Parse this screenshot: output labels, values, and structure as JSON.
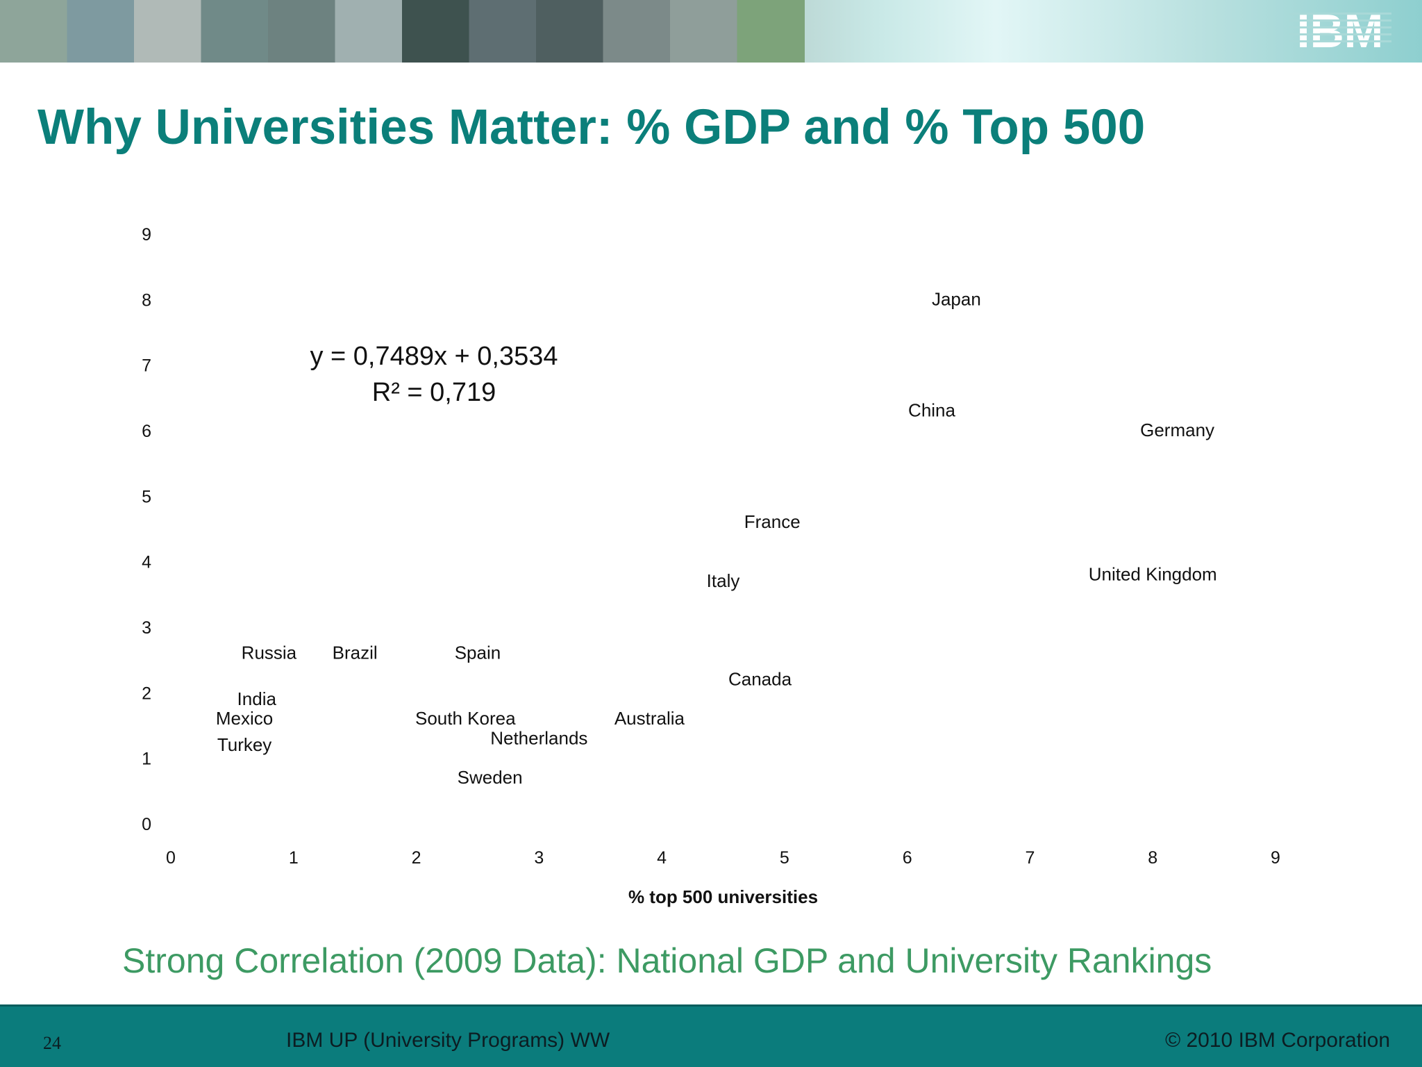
{
  "banner": {
    "logo_text": "IBM",
    "tile_colors": [
      "#8ea59a",
      "#7e9aa0",
      "#b0bab7",
      "#708a88",
      "#6d8280",
      "#a0b0b0",
      "#3e524f",
      "#5e6e72",
      "#4f5f60",
      "#7c8a89",
      "#8f9e9a",
      "#7da37a"
    ]
  },
  "slide": {
    "title": "Why Universities Matter: % GDP and % Top 500",
    "subtitle": "Strong Correlation (2009 Data): National GDP and University Rankings",
    "page_number": "24",
    "program": "IBM UP (University Programs) WW",
    "copyright": "© 2010 IBM Corporation"
  },
  "colors": {
    "title": "#0b7f7a",
    "subtitle": "#3d9a63",
    "footer": "#0b7c7c",
    "text": "#0c1d22"
  },
  "chart_data": {
    "type": "scatter",
    "xlabel": "% top 500 universities",
    "ylabel": "",
    "xlim": [
      0,
      9
    ],
    "ylim": [
      0,
      9
    ],
    "x_ticks": [
      0,
      1,
      2,
      3,
      4,
      5,
      6,
      7,
      8,
      9
    ],
    "y_ticks": [
      0,
      1,
      2,
      3,
      4,
      5,
      6,
      7,
      8,
      9
    ],
    "grid": false,
    "trendline": {
      "equation": "y = 0,7489x + 0,3534",
      "r2": "R² = 0,719"
    },
    "points": [
      {
        "label": "Japan",
        "x": 6.4,
        "y": 8.0
      },
      {
        "label": "China",
        "x": 6.2,
        "y": 6.3
      },
      {
        "label": "Germany",
        "x": 8.2,
        "y": 6.0
      },
      {
        "label": "France",
        "x": 4.9,
        "y": 4.6
      },
      {
        "label": "Italy",
        "x": 4.5,
        "y": 3.7
      },
      {
        "label": "United Kingdom",
        "x": 8.0,
        "y": 3.8
      },
      {
        "label": "Russia",
        "x": 0.8,
        "y": 2.6
      },
      {
        "label": "Brazil",
        "x": 1.5,
        "y": 2.6
      },
      {
        "label": "Spain",
        "x": 2.5,
        "y": 2.6
      },
      {
        "label": "Canada",
        "x": 4.8,
        "y": 2.2
      },
      {
        "label": "India",
        "x": 0.7,
        "y": 1.9
      },
      {
        "label": "Mexico",
        "x": 0.6,
        "y": 1.6
      },
      {
        "label": "South Korea",
        "x": 2.4,
        "y": 1.6
      },
      {
        "label": "Australia",
        "x": 3.9,
        "y": 1.6
      },
      {
        "label": "Netherlands",
        "x": 3.0,
        "y": 1.3
      },
      {
        "label": "Turkey",
        "x": 0.6,
        "y": 1.2
      },
      {
        "label": "Sweden",
        "x": 2.6,
        "y": 0.7
      }
    ]
  }
}
